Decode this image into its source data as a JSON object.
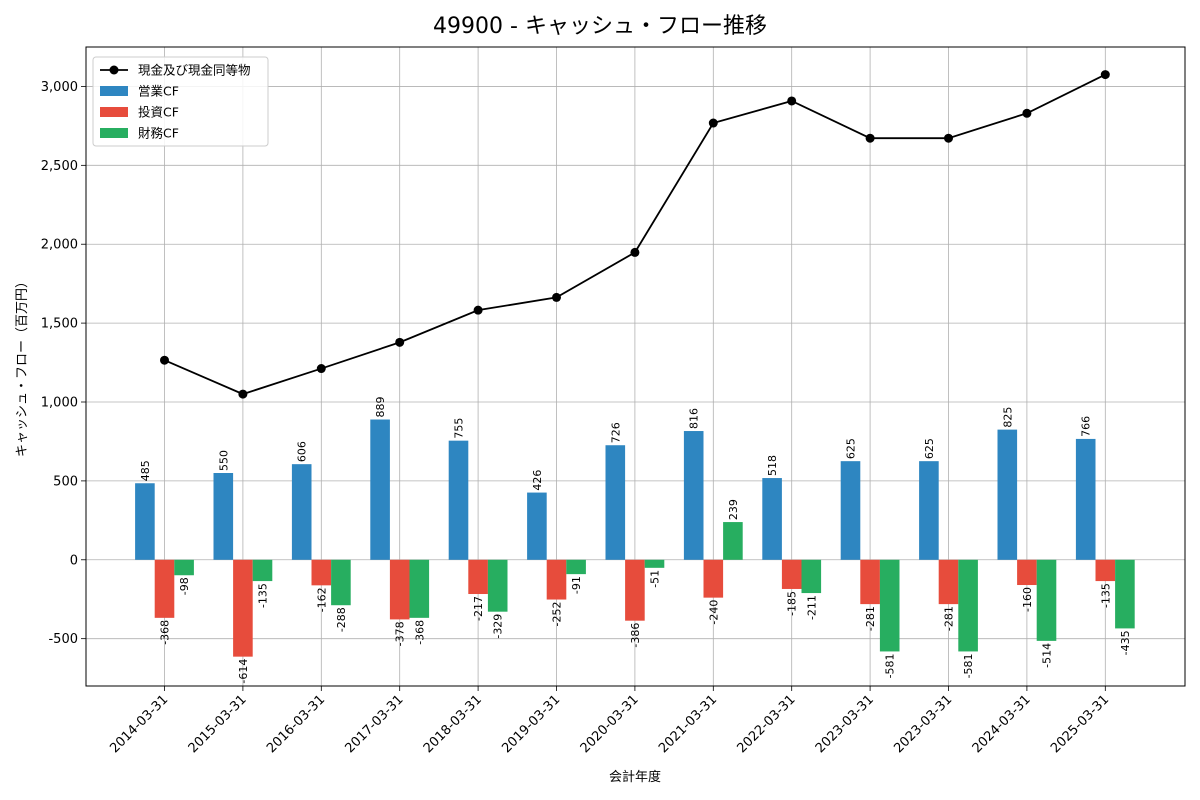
{
  "chart_data": {
    "type": "bar",
    "title": "49900 - キャッシュ・フロー推移",
    "xlabel": "会計年度",
    "ylabel": "キャッシュ・フロー（百万円）",
    "categories": [
      "2014-03-31",
      "2015-03-31",
      "2016-03-31",
      "2017-03-31",
      "2018-03-31",
      "2019-03-31",
      "2020-03-31",
      "2021-03-31",
      "2022-03-31",
      "2023-03-31",
      "2023-03-31",
      "2024-03-31",
      "2025-03-31"
    ],
    "ylim": [
      -800,
      3250
    ],
    "yticks": [
      -500,
      0,
      500,
      1000,
      1500,
      2000,
      2500,
      3000
    ],
    "ytick_labels": [
      "-500",
      "0",
      "500",
      "1,000",
      "1,500",
      "2,000",
      "2,500",
      "3,000"
    ],
    "grid": true,
    "legend_position": "top-left",
    "series": [
      {
        "name": "営業CF",
        "kind": "bar",
        "color": "#2e86c1",
        "values": [
          485,
          550,
          606,
          889,
          755,
          426,
          726,
          816,
          518,
          625,
          625,
          825,
          766
        ]
      },
      {
        "name": "投資CF",
        "kind": "bar",
        "color": "#e74c3c",
        "values": [
          -368,
          -614,
          -162,
          -378,
          -217,
          -252,
          -386,
          -240,
          -185,
          -281,
          -281,
          -160,
          -135
        ]
      },
      {
        "name": "財務CF",
        "kind": "bar",
        "color": "#27ae60",
        "values": [
          -98,
          -135,
          -288,
          -368,
          -329,
          -91,
          -51,
          239,
          -211,
          -581,
          -581,
          -514,
          -435
        ]
      }
    ],
    "line_series": {
      "name": "現金及び現金同等物",
      "kind": "line",
      "color": "#000000",
      "values": [
        1265,
        1050,
        1212,
        1378,
        1582,
        1663,
        1948,
        2768,
        2908,
        2672,
        2672,
        2830,
        3075
      ]
    }
  }
}
